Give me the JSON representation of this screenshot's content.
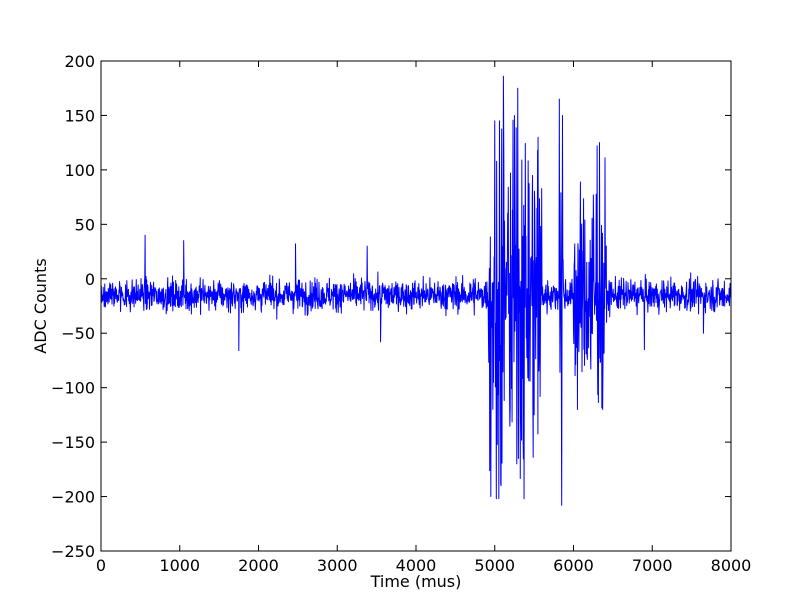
{
  "chart_data": {
    "type": "line",
    "title": "",
    "xlabel": "Time (mus)",
    "ylabel": "ADC Counts",
    "xlim": [
      0,
      8000
    ],
    "ylim": [
      -250,
      200
    ],
    "x_ticks": [
      0,
      1000,
      2000,
      3000,
      4000,
      5000,
      6000,
      7000,
      8000
    ],
    "y_ticks": [
      -250,
      -200,
      -150,
      -100,
      -50,
      0,
      50,
      100,
      150,
      200
    ],
    "x_tick_labels": [
      "0",
      "1000",
      "2000",
      "3000",
      "4000",
      "5000",
      "6000",
      "7000",
      "8000"
    ],
    "y_tick_labels": [
      "−250",
      "−200",
      "−150",
      "−100",
      "−50",
      "0",
      "50",
      "100",
      "150",
      "200"
    ],
    "grid": false,
    "legend": "none",
    "series": [
      {
        "color": "#0000ff",
        "baseline": -15,
        "noise_range": [
          -66,
          40
        ],
        "burst_segments": [
          {
            "x_range": [
              4920,
              5600
            ],
            "y_range": [
              -202,
              186
            ]
          },
          {
            "x_range": [
              5820,
              5870
            ],
            "y_range": [
              -208,
              166
            ]
          },
          {
            "x_range": [
              6000,
              6420
            ],
            "y_range": [
              -123,
              122
            ]
          }
        ],
        "x": [
          0,
          560,
          1050,
          1750,
          2470,
          3380,
          3550,
          4950,
          5000,
          5020,
          5060,
          5080,
          5110,
          5250,
          5280,
          5300,
          5550,
          5820,
          5850,
          5860,
          6050,
          6300,
          6330,
          6370,
          6420,
          6900,
          7650,
          8000
        ],
        "y": [
          -15,
          40,
          35,
          -66,
          32,
          30,
          -58,
          -200,
          145,
          -202,
          145,
          -190,
          186,
          150,
          -170,
          -165,
          130,
          165,
          -208,
          150,
          -120,
          122,
          125,
          -120,
          -40,
          -65,
          -50,
          -15
        ]
      }
    ]
  }
}
